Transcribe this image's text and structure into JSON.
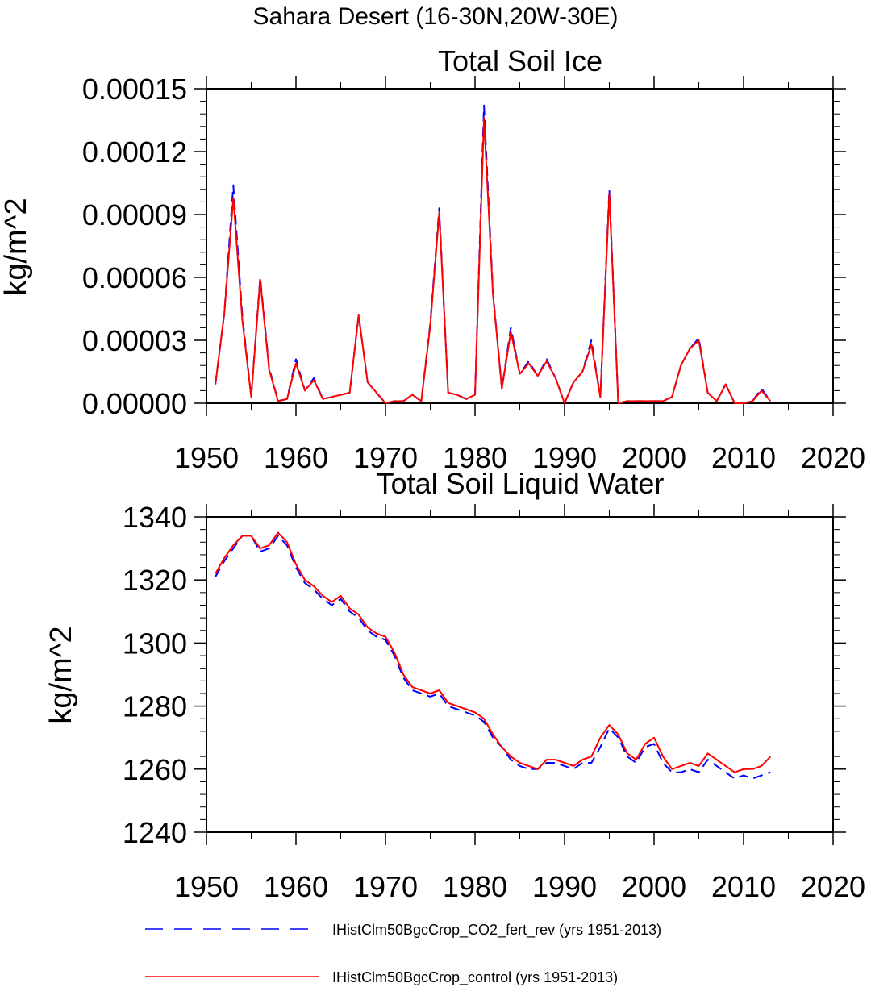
{
  "suptitle": "Sahara Desert (16-30N,20W-30E)",
  "legend": [
    {
      "label": "IHistClm50BgcCrop_CO2_fert_rev (yrs 1951-2013)",
      "color": "#0000ff",
      "dash": "dashed"
    },
    {
      "label": "IHistClm50BgcCrop_control (yrs 1951-2013)",
      "color": "#ff0000",
      "dash": "solid"
    }
  ],
  "chart_data": [
    {
      "type": "line",
      "title": "Total Soil Ice",
      "xlabel": "",
      "ylabel": "kg/m^2",
      "xlim": [
        1950,
        2020
      ],
      "ylim": [
        0,
        0.00015
      ],
      "xticks": [
        1950,
        1960,
        1970,
        1980,
        1990,
        2000,
        2010,
        2020
      ],
      "xtick_labels": [
        "1950",
        "1960",
        "1970",
        "1980",
        "1990",
        "2000",
        "2010",
        "2020"
      ],
      "yticks": [
        0,
        3e-05,
        6e-05,
        9e-05,
        0.00012,
        0.00015
      ],
      "ytick_labels": [
        "0.00000",
        "0.00003",
        "0.00006",
        "0.00009",
        "0.00012",
        "0.00015"
      ],
      "grid": false,
      "x": [
        1951,
        1952,
        1953,
        1954,
        1955,
        1956,
        1957,
        1958,
        1959,
        1960,
        1961,
        1962,
        1963,
        1964,
        1965,
        1966,
        1967,
        1968,
        1969,
        1970,
        1971,
        1972,
        1973,
        1974,
        1975,
        1976,
        1977,
        1978,
        1979,
        1980,
        1981,
        1982,
        1983,
        1984,
        1985,
        1986,
        1987,
        1988,
        1989,
        1990,
        1991,
        1992,
        1993,
        1994,
        1995,
        1996,
        1997,
        1998,
        1999,
        2000,
        2001,
        2002,
        2003,
        2004,
        2005,
        2006,
        2007,
        2008,
        2009,
        2010,
        2011,
        2012,
        2013
      ],
      "series": [
        {
          "name": "IHistClm50BgcCrop_CO2_fert_rev (yrs 1951-2013)",
          "color": "#0000ff",
          "dash": "dashed",
          "values": [
            9e-06,
            4.3e-05,
            0.000104,
            4.2e-05,
            3e-06,
            6e-05,
            1.7e-05,
            1e-06,
            2e-06,
            2.1e-05,
            6e-06,
            1.2e-05,
            2e-06,
            3e-06,
            4e-06,
            5e-06,
            4.2e-05,
            1e-05,
            5e-06,
            0.0,
            1e-06,
            1e-06,
            4e-06,
            1e-06,
            3.8e-05,
            9.3e-05,
            5e-06,
            4e-06,
            2e-06,
            4e-06,
            0.000142,
            5.3e-05,
            7e-06,
            3.6e-05,
            1.4e-05,
            2e-05,
            1.3e-05,
            2.1e-05,
            1.2e-05,
            0.0,
            1e-05,
            1.5e-05,
            3e-05,
            3e-06,
            0.000102,
            0.0,
            1e-06,
            1e-06,
            1e-06,
            1e-06,
            1e-06,
            3e-06,
            1.8e-05,
            2.6e-05,
            3.1e-05,
            5e-06,
            1e-06,
            9e-06,
            0.0,
            0.0,
            1e-06,
            7e-06,
            1e-06
          ]
        },
        {
          "name": "IHistClm50BgcCrop_control (yrs 1951-2013)",
          "color": "#ff0000",
          "dash": "solid",
          "values": [
            9e-06,
            4.3e-05,
            9.8e-05,
            4e-05,
            3e-06,
            5.9e-05,
            1.6e-05,
            1e-06,
            2e-06,
            1.9e-05,
            6e-06,
            1.1e-05,
            2e-06,
            3e-06,
            4e-06,
            5e-06,
            4.2e-05,
            1e-05,
            5e-06,
            0.0,
            1e-06,
            1e-06,
            4e-06,
            1e-06,
            3.7e-05,
            9.1e-05,
            5e-06,
            4e-06,
            2e-06,
            4e-06,
            0.000136,
            5.2e-05,
            7e-06,
            3.4e-05,
            1.4e-05,
            1.9e-05,
            1.3e-05,
            2e-05,
            1.2e-05,
            0.0,
            1e-05,
            1.5e-05,
            2.8e-05,
            3e-06,
            0.0001,
            0.0,
            1e-06,
            1e-06,
            1e-06,
            1e-06,
            1e-06,
            3e-06,
            1.8e-05,
            2.6e-05,
            3e-05,
            5e-06,
            1e-06,
            9e-06,
            0.0,
            0.0,
            1e-06,
            6e-06,
            1e-06
          ]
        }
      ]
    },
    {
      "type": "line",
      "title": "Total Soil Liquid Water",
      "xlabel": "",
      "ylabel": "kg/m^2",
      "xlim": [
        1950,
        2020
      ],
      "ylim": [
        1240,
        1340
      ],
      "xticks": [
        1950,
        1960,
        1970,
        1980,
        1990,
        2000,
        2010,
        2020
      ],
      "xtick_labels": [
        "1950",
        "1960",
        "1970",
        "1980",
        "1990",
        "2000",
        "2010",
        "2020"
      ],
      "yticks": [
        1240,
        1260,
        1280,
        1300,
        1320,
        1340
      ],
      "ytick_labels": [
        "1240",
        "1260",
        "1280",
        "1300",
        "1320",
        "1340"
      ],
      "grid": false,
      "x": [
        1951,
        1952,
        1953,
        1954,
        1955,
        1956,
        1957,
        1958,
        1959,
        1960,
        1961,
        1962,
        1963,
        1964,
        1965,
        1966,
        1967,
        1968,
        1969,
        1970,
        1971,
        1972,
        1973,
        1974,
        1975,
        1976,
        1977,
        1978,
        1979,
        1980,
        1981,
        1982,
        1983,
        1984,
        1985,
        1986,
        1987,
        1988,
        1989,
        1990,
        1991,
        1992,
        1993,
        1994,
        1995,
        1996,
        1997,
        1998,
        1999,
        2000,
        2001,
        2002,
        2003,
        2004,
        2005,
        2006,
        2007,
        2008,
        2009,
        2010,
        2011,
        2012,
        2013
      ],
      "series": [
        {
          "name": "IHistClm50BgcCrop_CO2_fert_rev (yrs 1951-2013)",
          "color": "#0000ff",
          "dash": "dashed",
          "values": [
            1321,
            1326,
            1330,
            1334,
            1334,
            1329,
            1330,
            1334,
            1331,
            1324,
            1319,
            1317,
            1314,
            1312,
            1314,
            1310,
            1308,
            1304,
            1302,
            1301,
            1296,
            1289,
            1285,
            1284,
            1283,
            1284,
            1280,
            1279,
            1278,
            1277,
            1275,
            1270,
            1267,
            1263,
            1261,
            1260,
            1260,
            1262,
            1262,
            1261,
            1260,
            1262,
            1262,
            1267,
            1273,
            1270,
            1264,
            1262,
            1267,
            1268,
            1262,
            1259,
            1259,
            1260,
            1259,
            1263,
            1261,
            1259,
            1257,
            1258,
            1257,
            1258,
            1259
          ]
        },
        {
          "name": "IHistClm50BgcCrop_control (yrs 1951-2013)",
          "color": "#ff0000",
          "dash": "solid",
          "values": [
            1322,
            1327,
            1331,
            1334,
            1334,
            1330,
            1331,
            1335,
            1332,
            1325,
            1320,
            1318,
            1315,
            1313,
            1315,
            1311,
            1309,
            1305,
            1303,
            1302,
            1297,
            1290,
            1286,
            1285,
            1284,
            1285,
            1281,
            1280,
            1279,
            1278,
            1276,
            1271,
            1267,
            1264,
            1262,
            1261,
            1260,
            1263,
            1263,
            1262,
            1261,
            1263,
            1264,
            1270,
            1274,
            1271,
            1265,
            1263,
            1268,
            1270,
            1264,
            1260,
            1261,
            1262,
            1261,
            1265,
            1263,
            1261,
            1259,
            1260,
            1260,
            1261,
            1264
          ]
        }
      ]
    }
  ]
}
